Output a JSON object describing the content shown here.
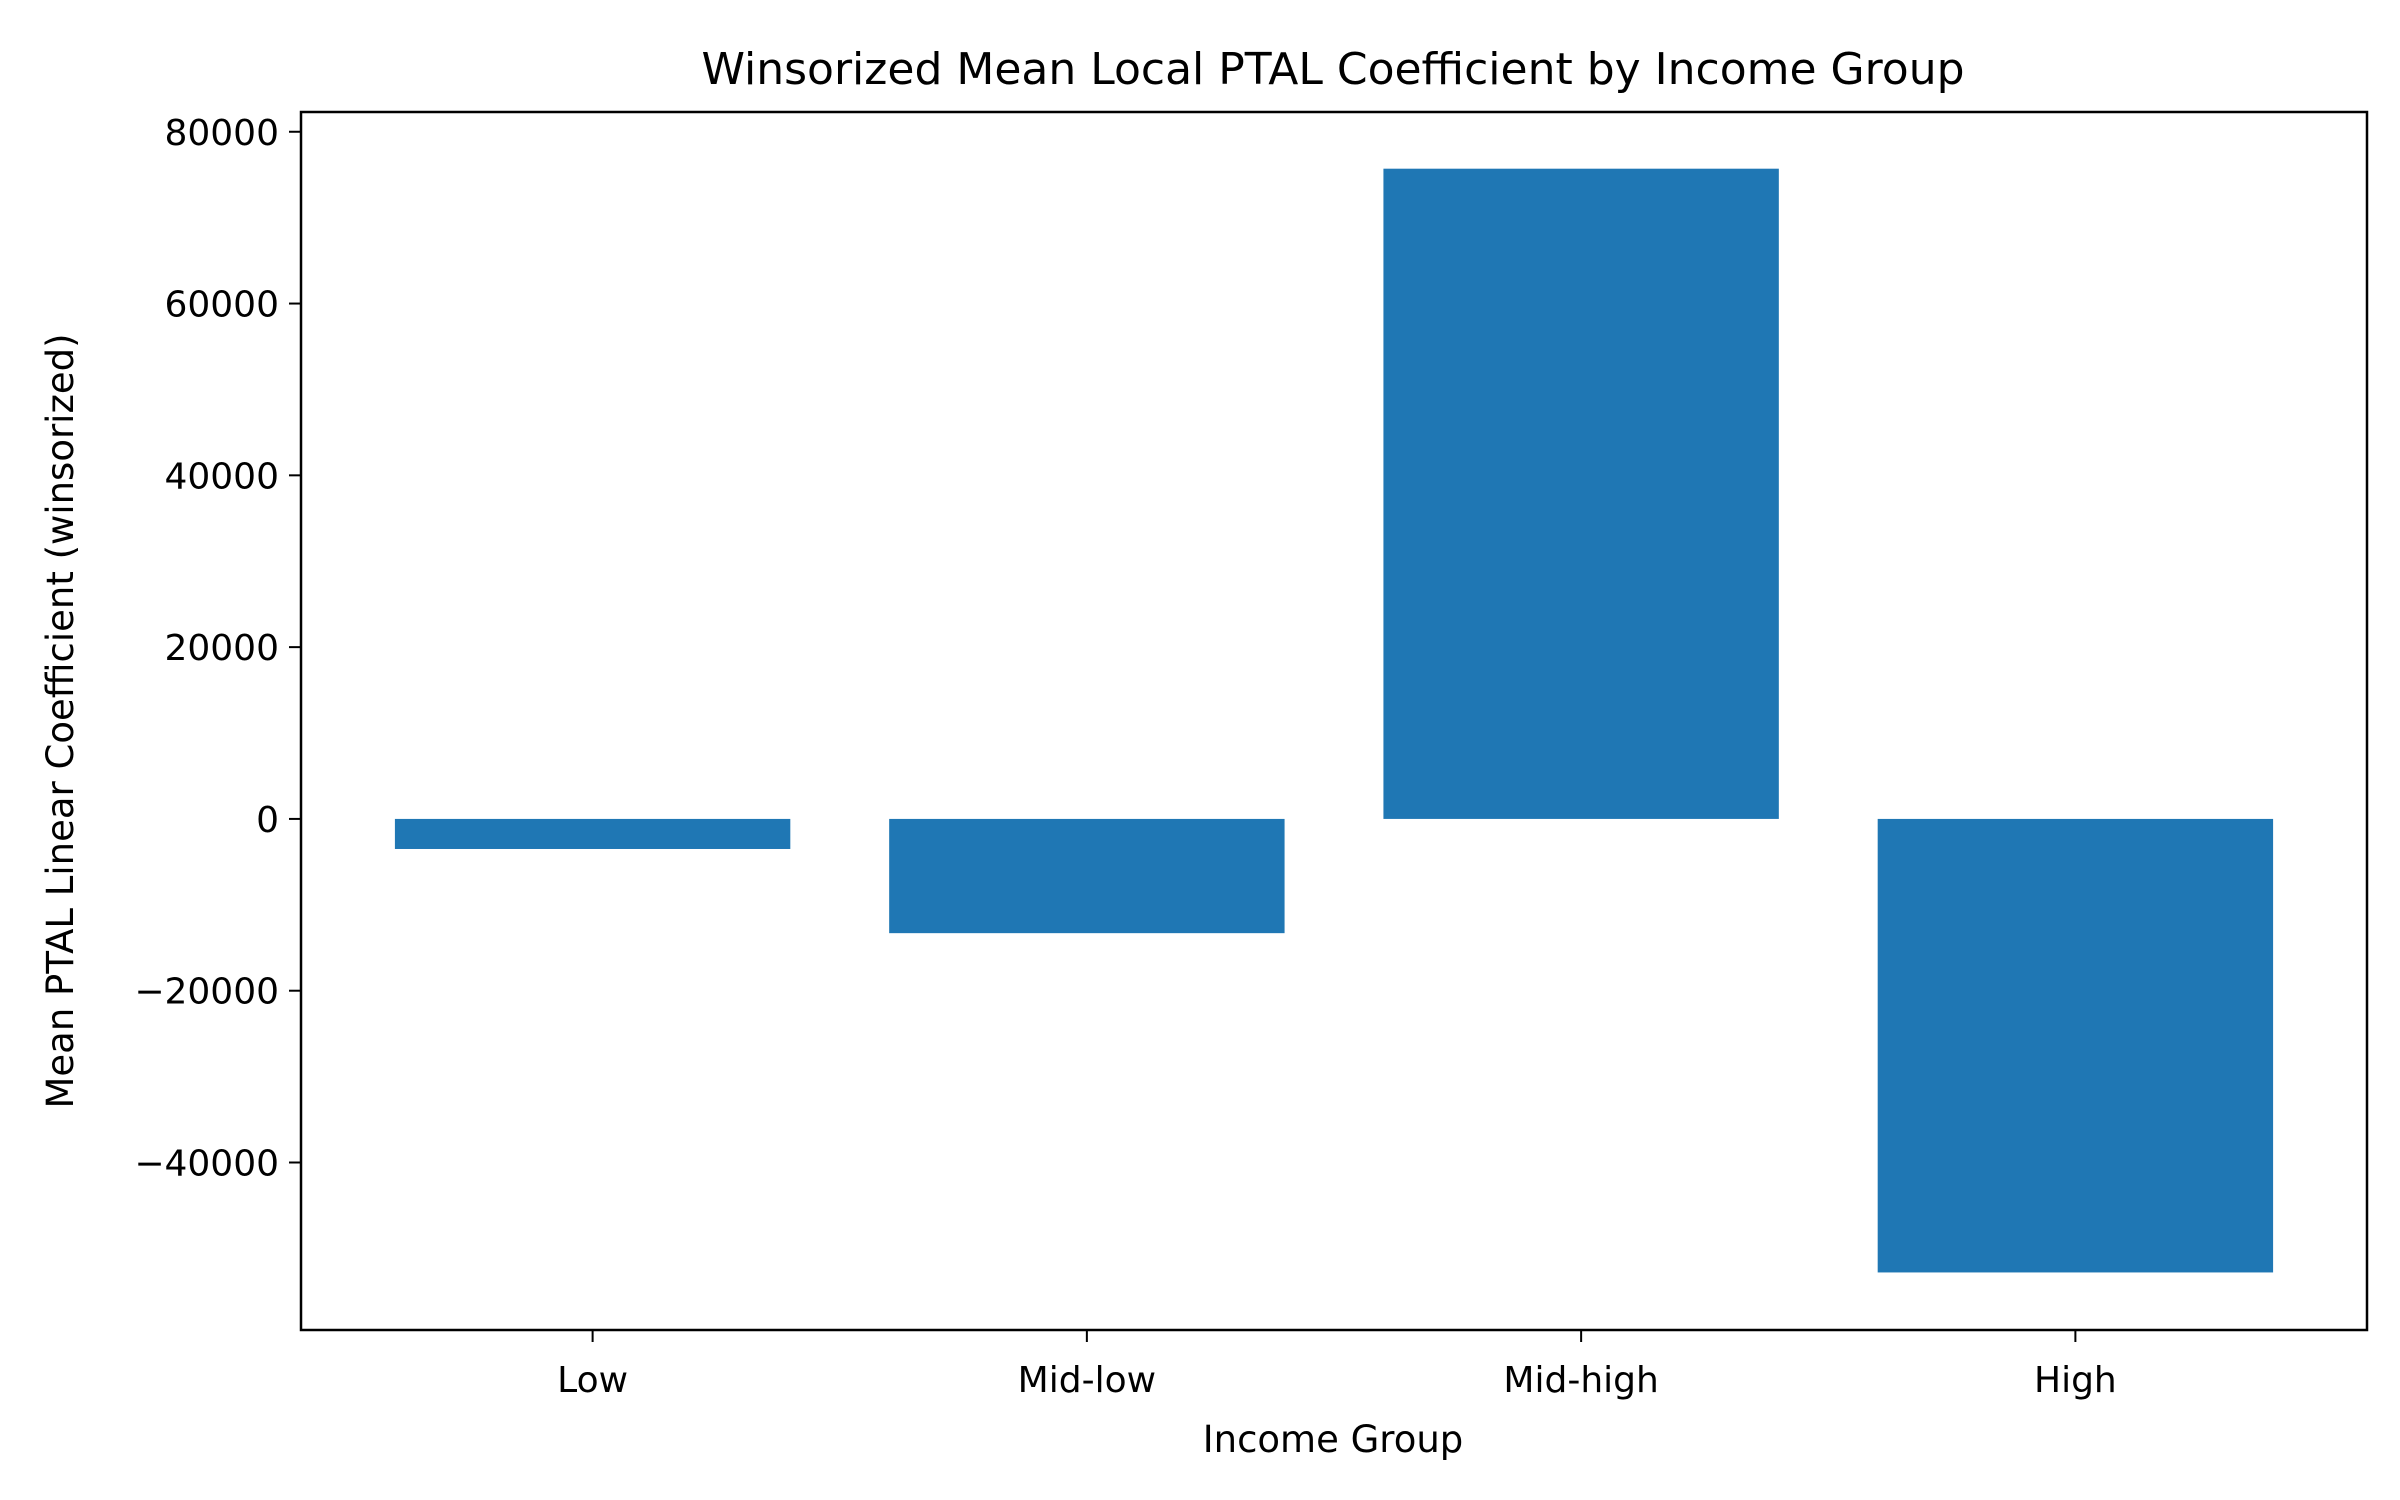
{
  "chart_data": {
    "type": "bar",
    "title": "Winsorized Mean Local PTAL Coefficient by Income Group",
    "xlabel": "Income Group",
    "ylabel": "Mean PTAL Linear Coefficient (winsorized)",
    "categories": [
      "Low",
      "Mid-low",
      "Mid-high",
      "High"
    ],
    "values": [
      -3500,
      -13300,
      75700,
      -52800
    ],
    "ylim": [
      -59500,
      82300
    ],
    "yticks": [
      -40000,
      -20000,
      0,
      20000,
      40000,
      60000,
      80000
    ],
    "ytick_labels": [
      "−40000",
      "−20000",
      "0",
      "20000",
      "40000",
      "60000",
      "80000"
    ],
    "grid": false,
    "legend": "none",
    "colors": {
      "bar": "#1f77b4",
      "axis": "#000000",
      "background": "#ffffff"
    }
  }
}
